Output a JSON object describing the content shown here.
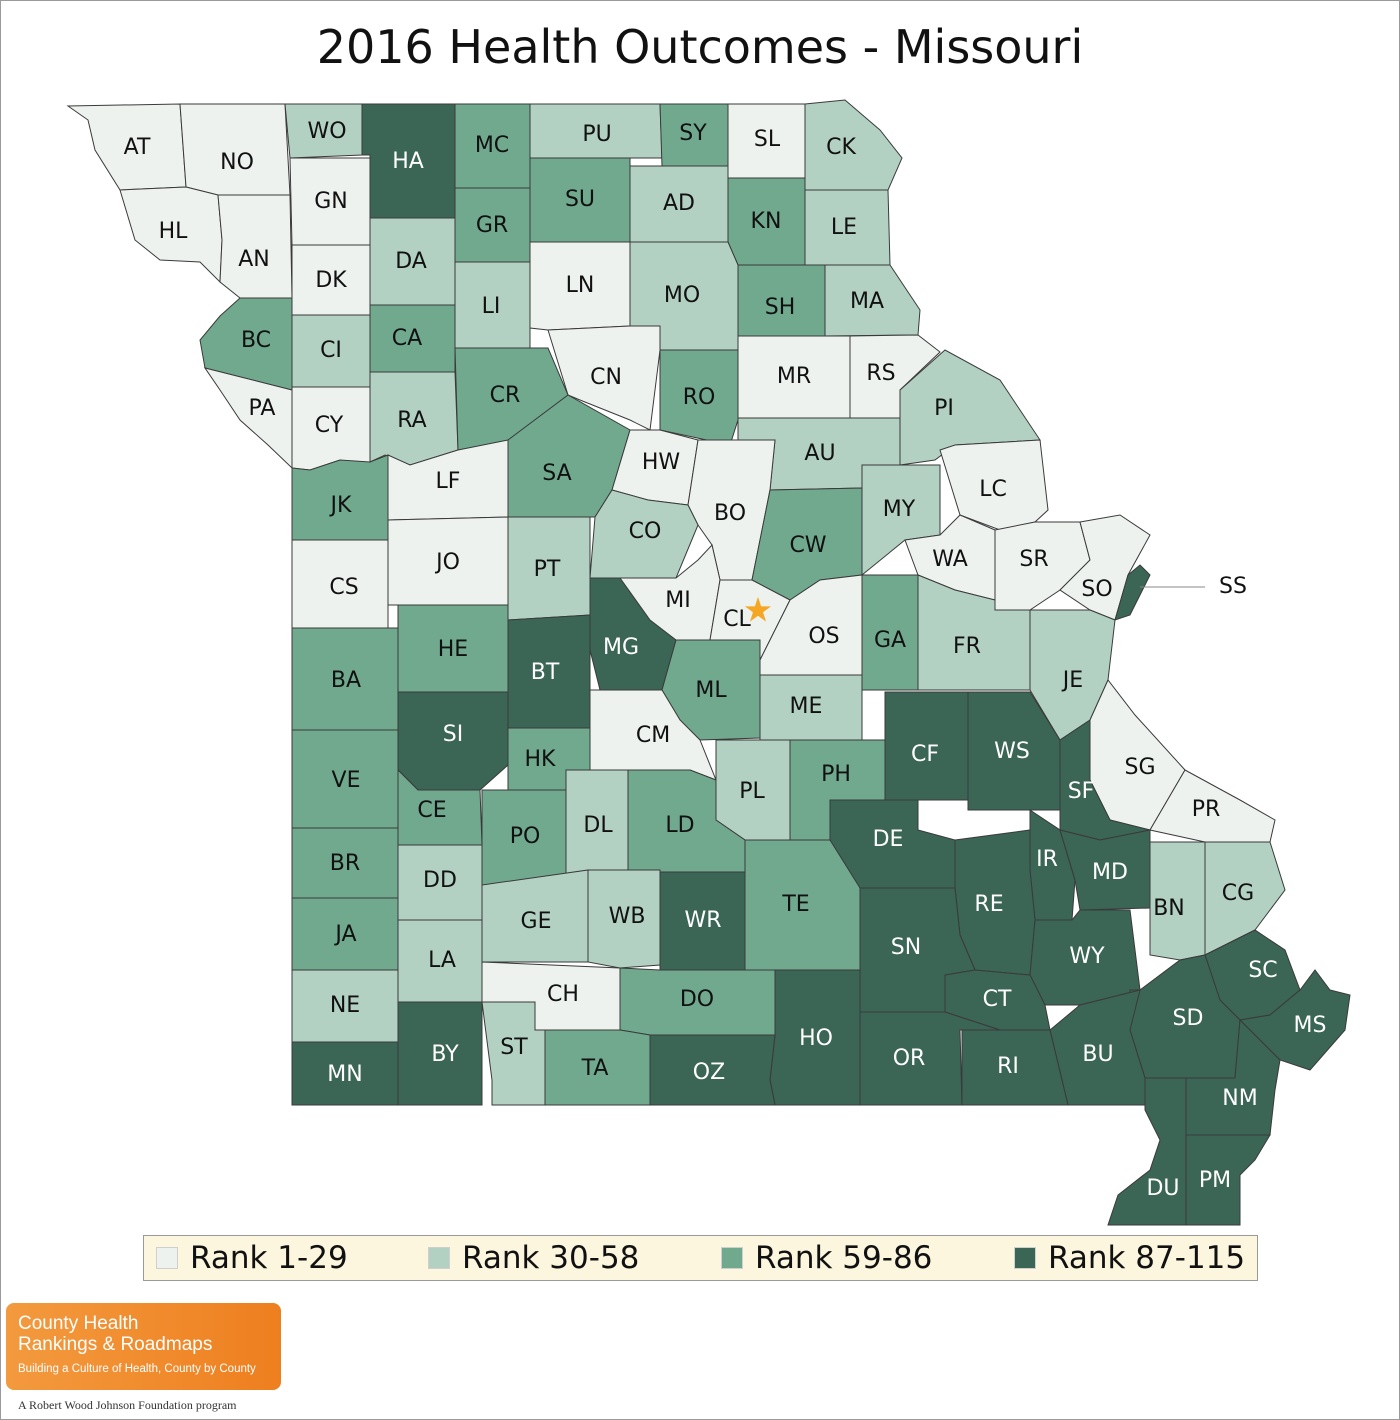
{
  "title": "2016 Health Outcomes - Missouri",
  "legend": [
    {
      "label": "Rank 1-29",
      "color": "#eef2ef"
    },
    {
      "label": "Rank 30-58",
      "color": "#b3d1c2"
    },
    {
      "label": "Rank 59-86",
      "color": "#71a98f"
    },
    {
      "label": "Rank 87-115",
      "color": "#3b6555"
    }
  ],
  "counties": [
    {
      "label": "AT",
      "tier": 0
    },
    {
      "label": "NO",
      "tier": 0
    },
    {
      "label": "WO",
      "tier": 1
    },
    {
      "label": "HA",
      "tier": 3
    },
    {
      "label": "MC",
      "tier": 2
    },
    {
      "label": "PU",
      "tier": 1
    },
    {
      "label": "SY",
      "tier": 2
    },
    {
      "label": "SL",
      "tier": 0
    },
    {
      "label": "CK",
      "tier": 1
    },
    {
      "label": "HL",
      "tier": 0
    },
    {
      "label": "AN",
      "tier": 0
    },
    {
      "label": "GN",
      "tier": 0
    },
    {
      "label": "DK",
      "tier": 0
    },
    {
      "label": "DA",
      "tier": 1
    },
    {
      "label": "GR",
      "tier": 2
    },
    {
      "label": "SU",
      "tier": 2
    },
    {
      "label": "AD",
      "tier": 1
    },
    {
      "label": "KN",
      "tier": 2
    },
    {
      "label": "LE",
      "tier": 1
    },
    {
      "label": "LI",
      "tier": 1
    },
    {
      "label": "LN",
      "tier": 0
    },
    {
      "label": "MO",
      "tier": 1
    },
    {
      "label": "SH",
      "tier": 2
    },
    {
      "label": "MA",
      "tier": 1
    },
    {
      "label": "BC",
      "tier": 2
    },
    {
      "label": "CI",
      "tier": 1
    },
    {
      "label": "CA",
      "tier": 2
    },
    {
      "label": "PA",
      "tier": 0
    },
    {
      "label": "CY",
      "tier": 0
    },
    {
      "label": "RA",
      "tier": 1
    },
    {
      "label": "CR",
      "tier": 2
    },
    {
      "label": "CN",
      "tier": 0
    },
    {
      "label": "RO",
      "tier": 2
    },
    {
      "label": "MR",
      "tier": 0
    },
    {
      "label": "RS",
      "tier": 0
    },
    {
      "label": "PI",
      "tier": 1
    },
    {
      "label": "LF",
      "tier": 0
    },
    {
      "label": "SA",
      "tier": 2
    },
    {
      "label": "HW",
      "tier": 0
    },
    {
      "label": "AU",
      "tier": 1
    },
    {
      "label": "JK",
      "tier": 2
    },
    {
      "label": "BO",
      "tier": 0
    },
    {
      "label": "CO",
      "tier": 1
    },
    {
      "label": "CW",
      "tier": 2
    },
    {
      "label": "MY",
      "tier": 1
    },
    {
      "label": "LC",
      "tier": 0
    },
    {
      "label": "JO",
      "tier": 0
    },
    {
      "label": "PT",
      "tier": 1
    },
    {
      "label": "WA",
      "tier": 0
    },
    {
      "label": "SR",
      "tier": 0
    },
    {
      "label": "CS",
      "tier": 0
    },
    {
      "label": "MI",
      "tier": 0
    },
    {
      "label": "SO",
      "tier": 0
    },
    {
      "label": "SS",
      "tier": 3
    },
    {
      "label": "CL",
      "tier": 0
    },
    {
      "label": "OS",
      "tier": 0
    },
    {
      "label": "GA",
      "tier": 2
    },
    {
      "label": "FR",
      "tier": 1
    },
    {
      "label": "HE",
      "tier": 2
    },
    {
      "label": "MG",
      "tier": 3
    },
    {
      "label": "BT",
      "tier": 3
    },
    {
      "label": "BA",
      "tier": 2
    },
    {
      "label": "ML",
      "tier": 2
    },
    {
      "label": "ME",
      "tier": 1
    },
    {
      "label": "JE",
      "tier": 1
    },
    {
      "label": "SI",
      "tier": 3
    },
    {
      "label": "CM",
      "tier": 0
    },
    {
      "label": "CF",
      "tier": 3
    },
    {
      "label": "WS",
      "tier": 3
    },
    {
      "label": "HK",
      "tier": 2
    },
    {
      "label": "VE",
      "tier": 2
    },
    {
      "label": "PH",
      "tier": 2
    },
    {
      "label": "PL",
      "tier": 1
    },
    {
      "label": "SG",
      "tier": 0
    },
    {
      "label": "SF",
      "tier": 3
    },
    {
      "label": "PR",
      "tier": 0
    },
    {
      "label": "CE",
      "tier": 2
    },
    {
      "label": "PO",
      "tier": 2
    },
    {
      "label": "DL",
      "tier": 1
    },
    {
      "label": "LD",
      "tier": 2
    },
    {
      "label": "DE",
      "tier": 3
    },
    {
      "label": "IR",
      "tier": 3
    },
    {
      "label": "MD",
      "tier": 3
    },
    {
      "label": "BR",
      "tier": 2
    },
    {
      "label": "DD",
      "tier": 1
    },
    {
      "label": "RE",
      "tier": 3
    },
    {
      "label": "BN",
      "tier": 1
    },
    {
      "label": "CG",
      "tier": 1
    },
    {
      "label": "GE",
      "tier": 1
    },
    {
      "label": "WB",
      "tier": 1
    },
    {
      "label": "WR",
      "tier": 3
    },
    {
      "label": "TE",
      "tier": 2
    },
    {
      "label": "JA",
      "tier": 2
    },
    {
      "label": "SN",
      "tier": 3
    },
    {
      "label": "LA",
      "tier": 1
    },
    {
      "label": "WY",
      "tier": 3
    },
    {
      "label": "SC",
      "tier": 3
    },
    {
      "label": "CH",
      "tier": 0
    },
    {
      "label": "DO",
      "tier": 2
    },
    {
      "label": "CT",
      "tier": 3
    },
    {
      "label": "NE",
      "tier": 1
    },
    {
      "label": "SD",
      "tier": 3
    },
    {
      "label": "MS",
      "tier": 3
    },
    {
      "label": "HO",
      "tier": 3
    },
    {
      "label": "BY",
      "tier": 3
    },
    {
      "label": "ST",
      "tier": 1
    },
    {
      "label": "OR",
      "tier": 3
    },
    {
      "label": "BU",
      "tier": 3
    },
    {
      "label": "MN",
      "tier": 3
    },
    {
      "label": "TA",
      "tier": 2
    },
    {
      "label": "OZ",
      "tier": 3
    },
    {
      "label": "RI",
      "tier": 3
    },
    {
      "label": "NM",
      "tier": 3
    },
    {
      "label": "DU",
      "tier": 3
    },
    {
      "label": "PM",
      "tier": 3
    }
  ],
  "capital_marker": {
    "symbol": "★",
    "color": "#f5a623"
  },
  "logo": {
    "line1": "County Health",
    "line2": "Rankings & Roadmaps",
    "tagline": "Building a Culture of Health, County by County",
    "footer": "A Robert Wood Johnson Foundation program"
  }
}
